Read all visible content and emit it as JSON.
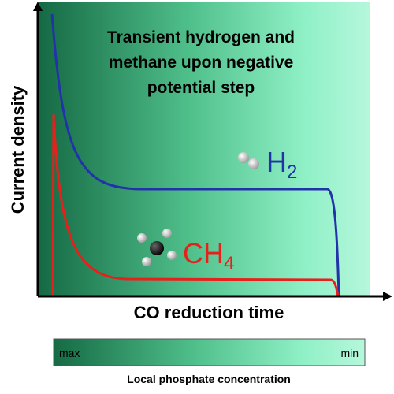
{
  "title_lines": [
    "Transient hydrogen and",
    "methane upon negative",
    "potential step"
  ],
  "y_axis_label": "Current density",
  "x_axis_label": "CO reduction time",
  "labels": {
    "h2": {
      "base": "H",
      "sub": "2"
    },
    "ch4": {
      "base": "CH",
      "sub": "4"
    }
  },
  "colorbar": {
    "left": "max",
    "right": "min",
    "caption": "Local phosphate concentration"
  }
}
